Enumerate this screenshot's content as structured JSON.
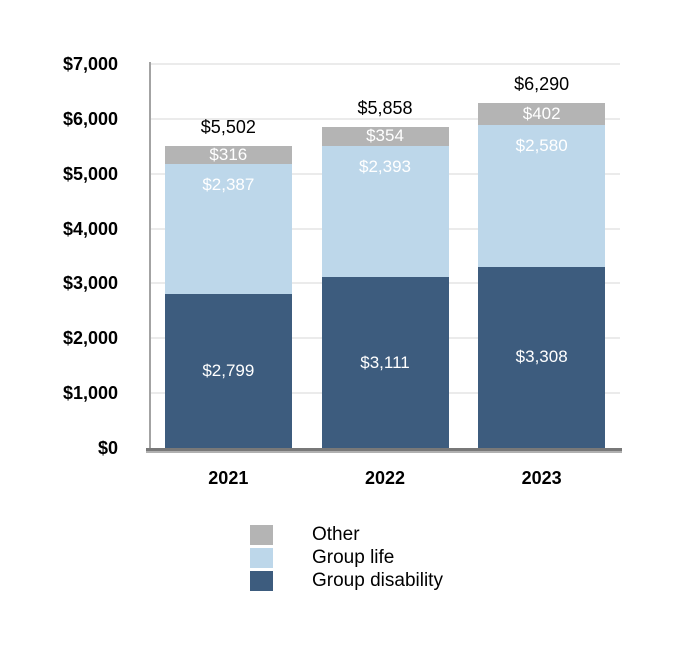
{
  "chart_data": {
    "type": "bar",
    "stacked": true,
    "title": "",
    "xlabel": "",
    "ylabel": "",
    "categories": [
      "2021",
      "2022",
      "2023"
    ],
    "series": [
      {
        "name": "Group disability",
        "color": "#3d5c7e",
        "values": [
          2799,
          3111,
          3308
        ],
        "value_labels": [
          "$2,799",
          "$3,111",
          "$3,308"
        ],
        "label_color": "#ffffff",
        "label_pos": "center"
      },
      {
        "name": "Group life",
        "color": "#bdd7ea",
        "values": [
          2387,
          2393,
          2580
        ],
        "value_labels": [
          "$2,387",
          "$2,393",
          "$2,580"
        ],
        "label_color": "#ffffff",
        "label_pos": "near-top"
      },
      {
        "name": "Other",
        "color": "#b4b4b4",
        "values": [
          316,
          354,
          402
        ],
        "value_labels": [
          "$316",
          "$354",
          "$402"
        ],
        "label_color": "#ffffff",
        "label_pos": "center"
      }
    ],
    "totals": [
      5502,
      5858,
      6290
    ],
    "total_labels": [
      "$5,502",
      "$5,858",
      "$6,290"
    ],
    "ylim": [
      0,
      7000
    ],
    "grid": true,
    "y_ticks": [
      {
        "value": 0,
        "label": "$0"
      },
      {
        "value": 1000,
        "label": "$1,000"
      },
      {
        "value": 2000,
        "label": "$2,000"
      },
      {
        "value": 3000,
        "label": "$3,000"
      },
      {
        "value": 4000,
        "label": "$4,000"
      },
      {
        "value": 5000,
        "label": "$5,000"
      },
      {
        "value": 6000,
        "label": "$6,000"
      },
      {
        "value": 7000,
        "label": "$7,000"
      }
    ],
    "legend": {
      "position": "bottom",
      "items": [
        {
          "label": "Other",
          "color": "#b4b4b4"
        },
        {
          "label": "Group life",
          "color": "#bdd7ea"
        },
        {
          "label": "Group disability",
          "color": "#3d5c7e"
        }
      ]
    },
    "colors": {
      "gridline": "#ebebeb",
      "x_axis_line": "#787878",
      "x_axis_shadow": "#b0b0b0",
      "y_axis_line": "#a3a3a3",
      "tick_text": "#000000",
      "total_text": "#000000"
    }
  }
}
